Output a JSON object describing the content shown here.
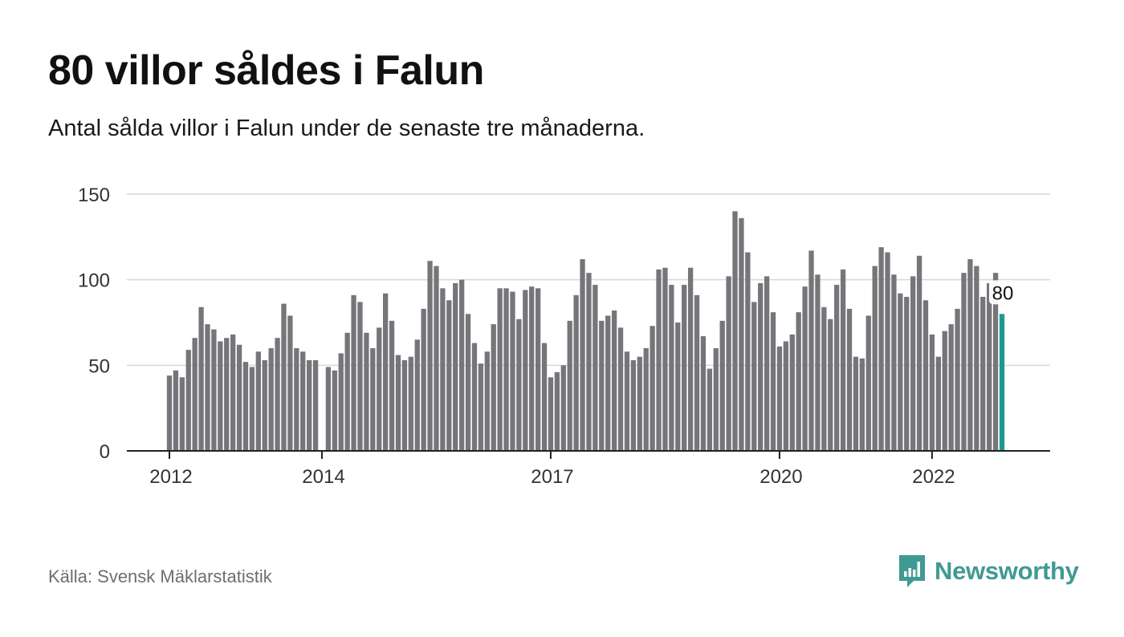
{
  "header": {
    "title": "80 villor såldes i Falun",
    "subtitle": "Antal sålda villor i Falun under de senaste tre månaderna."
  },
  "footer": {
    "source": "Källa: Svensk Mäklarstatistik",
    "brand": "Newsworthy",
    "brand_icon": "bar-chart-speech-bubble-icon"
  },
  "colors": {
    "bar": "#76757a",
    "highlight": "#1a9a8f",
    "grid": "#d8d8d8",
    "axis": "#222222",
    "brand": "#3f9a92"
  },
  "chart_data": {
    "type": "bar",
    "ylim": [
      0,
      150
    ],
    "yticks": [
      0,
      50,
      100,
      150
    ],
    "xticks": [
      {
        "label": "2012",
        "index": 0
      },
      {
        "label": "2014",
        "index": 24
      },
      {
        "label": "2017",
        "index": 60
      },
      {
        "label": "2020",
        "index": 96
      },
      {
        "label": "2022",
        "index": 120
      }
    ],
    "x_start": "2012-01",
    "highlight_label": "80",
    "values": [
      44,
      47,
      43,
      59,
      66,
      84,
      74,
      71,
      64,
      66,
      68,
      62,
      52,
      49,
      58,
      53,
      60,
      66,
      86,
      79,
      60,
      58,
      53,
      53,
      null,
      49,
      47,
      57,
      69,
      91,
      87,
      69,
      60,
      72,
      92,
      76,
      56,
      53,
      55,
      65,
      83,
      111,
      108,
      95,
      88,
      98,
      100,
      80,
      63,
      51,
      58,
      74,
      95,
      95,
      93,
      77,
      94,
      96,
      95,
      63,
      43,
      46,
      50,
      76,
      91,
      112,
      104,
      97,
      76,
      79,
      82,
      72,
      58,
      53,
      55,
      60,
      73,
      106,
      107,
      97,
      75,
      97,
      107,
      91,
      67,
      48,
      60,
      76,
      102,
      140,
      136,
      116,
      87,
      98,
      102,
      81,
      61,
      64,
      68,
      81,
      96,
      117,
      103,
      84,
      77,
      97,
      106,
      83,
      55,
      54,
      79,
      108,
      119,
      116,
      103,
      92,
      90,
      102,
      114,
      88,
      68,
      55,
      70,
      74,
      83,
      104,
      112,
      108,
      90,
      98,
      104,
      80
    ]
  }
}
